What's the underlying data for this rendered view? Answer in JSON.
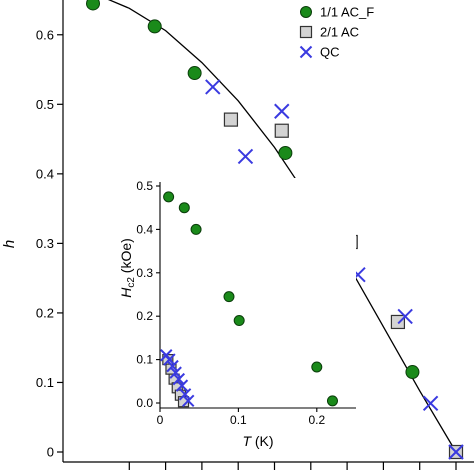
{
  "chart_data": [
    {
      "type": "scatter",
      "title": "",
      "xlabel": "",
      "ylabel": "h",
      "ylim": [
        0,
        0.65
      ],
      "xlim": [
        0,
        1
      ],
      "yticks": [
        0,
        0.1,
        0.2,
        0.3,
        0.4,
        0.5,
        0.6
      ],
      "ytick_labels": [
        "0",
        "0.1",
        "0.2",
        "0.3",
        "0.4",
        "0.5",
        "0.6"
      ],
      "xticks": [
        0.1,
        0.2,
        0.3,
        0.4,
        0.5,
        0.6,
        0.7,
        0.8,
        0.9,
        1.0
      ],
      "grid": false,
      "legend_position": "top-right",
      "series": [
        {
          "name": "1/1 AC_F",
          "marker": "circle",
          "color": "#1a8a1a",
          "x": [
            0.0,
            0.17,
            0.28,
            0.53,
            0.7,
            0.88
          ],
          "y": [
            0.645,
            0.612,
            0.545,
            0.43,
            0.3,
            0.115
          ]
        },
        {
          "name": "2/1 AC",
          "marker": "square",
          "color": "#d3d3d3",
          "x": [
            0.38,
            0.52,
            0.71,
            0.84,
            1.0
          ],
          "y": [
            0.478,
            0.462,
            0.302,
            0.187,
            0.0
          ]
        },
        {
          "name": "QC",
          "marker": "x",
          "color": "#3a3ae0",
          "x": [
            0.33,
            0.42,
            0.52,
            0.73,
            0.86,
            0.93,
            1.0
          ],
          "y": [
            0.525,
            0.425,
            0.49,
            0.255,
            0.195,
            0.07,
            0.0
          ]
        }
      ],
      "fit_curve": {
        "x": [
          0.0,
          0.1,
          0.2,
          0.3,
          0.4,
          0.5,
          0.6,
          0.7,
          0.8,
          0.9,
          1.0
        ],
        "y": [
          0.66,
          0.638,
          0.606,
          0.56,
          0.505,
          0.438,
          0.36,
          0.272,
          0.18,
          0.088,
          0.0
        ]
      }
    },
    {
      "type": "scatter",
      "title": "",
      "xlabel": "T (K)",
      "ylabel": "H_c2 (kOe)",
      "xlim": [
        0,
        0.25
      ],
      "ylim": [
        0,
        0.5
      ],
      "xticks": [
        0,
        0.1,
        0.2
      ],
      "xtick_labels": [
        "0",
        "0.1",
        "0.2"
      ],
      "yticks": [
        0,
        0.1,
        0.2,
        0.3,
        0.4,
        0.5
      ],
      "ytick_labels": [
        "0.0",
        "0.1",
        "0.2",
        "0.3",
        "0.4",
        "0.5"
      ],
      "grid": false,
      "series": [
        {
          "name": "1/1 AC_F",
          "marker": "circle",
          "color": "#1a8a1a",
          "x": [
            0.011,
            0.031,
            0.046,
            0.088,
            0.101,
            0.2,
            0.22
          ],
          "y": [
            0.475,
            0.45,
            0.4,
            0.245,
            0.19,
            0.083,
            0.005
          ]
        },
        {
          "name": "2/1 AC",
          "marker": "square",
          "color": "#d3d3d3",
          "x": [
            0.01,
            0.014,
            0.018,
            0.022,
            0.026,
            0.03
          ],
          "y": [
            0.1,
            0.078,
            0.055,
            0.035,
            0.018,
            0.003
          ]
        },
        {
          "name": "QC",
          "marker": "x",
          "color": "#3a3ae0",
          "x": [
            0.008,
            0.012,
            0.016,
            0.02,
            0.024,
            0.028,
            0.032,
            0.036
          ],
          "y": [
            0.11,
            0.1,
            0.085,
            0.07,
            0.055,
            0.04,
            0.02,
            0.005
          ]
        }
      ]
    }
  ],
  "legend": {
    "items": [
      "1/1 AC_F",
      "2/1 AC",
      "QC"
    ]
  },
  "main": {
    "ylabel": "h"
  },
  "inset": {
    "ylabel_main": "H",
    "ylabel_sub": "c2",
    "ylabel_unit": " (kOe)",
    "xlabel_var": "T",
    "xlabel_unit": " (K)"
  }
}
